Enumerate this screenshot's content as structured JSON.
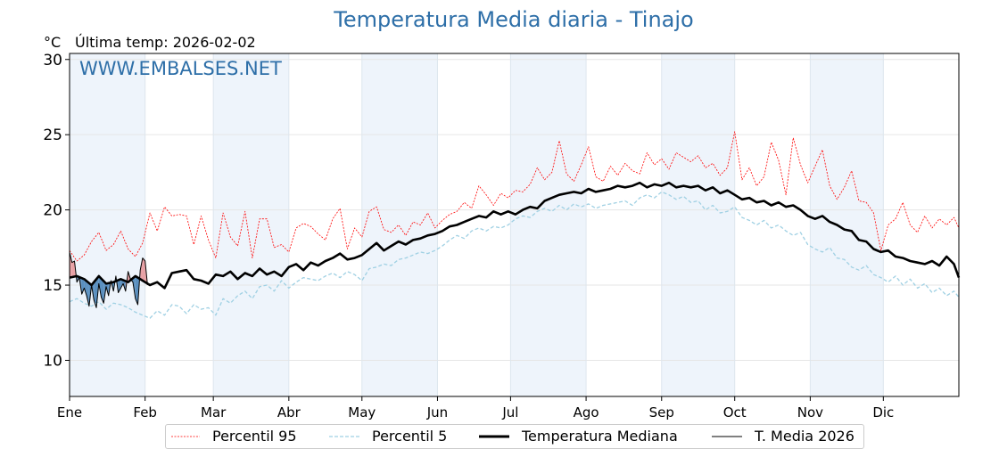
{
  "header": {
    "title": "Temperatura Media diaria - Tinajo",
    "unit": "°C",
    "last_temp_label": "Última temp: 2026-02-02",
    "watermark": "WWW.EMBALSES.NET"
  },
  "colors": {
    "title": "#2e6fa8",
    "p95": "#ff0000",
    "p5": "#9fd0e3",
    "median": "#000000",
    "media2026": "#000000",
    "above_fill": "#e8a0a4",
    "below_fill": "#5a8fbf",
    "band": "#eef4fb"
  },
  "legend": [
    {
      "key": "p95",
      "label": "Percentil 95"
    },
    {
      "key": "p5",
      "label": "Percentil 5"
    },
    {
      "key": "median",
      "label": "Temperatura Mediana"
    },
    {
      "key": "media2026",
      "label": "T. Media 2026"
    }
  ],
  "chart_data": {
    "type": "line",
    "title": "Temperatura Media diaria - Tinajo",
    "xlabel": "",
    "ylabel": "°C",
    "ylim": [
      7.6,
      30.4
    ],
    "xlim": [
      0,
      365
    ],
    "yticks": [
      10,
      15,
      20,
      25,
      30
    ],
    "month_ticks": [
      {
        "label": "Ene",
        "day": 0
      },
      {
        "label": "Feb",
        "day": 31
      },
      {
        "label": "Mar",
        "day": 59
      },
      {
        "label": "Abr",
        "day": 90
      },
      {
        "label": "May",
        "day": 120
      },
      {
        "label": "Jun",
        "day": 151
      },
      {
        "label": "Jul",
        "day": 181
      },
      {
        "label": "Ago",
        "day": 212
      },
      {
        "label": "Sep",
        "day": 243
      },
      {
        "label": "Oct",
        "day": 273
      },
      {
        "label": "Nov",
        "day": 304
      },
      {
        "label": "Dic",
        "day": 334
      }
    ],
    "shaded_months": [
      [
        0,
        31
      ],
      [
        59,
        90
      ],
      [
        120,
        151
      ],
      [
        181,
        212
      ],
      [
        243,
        273
      ],
      [
        304,
        334
      ]
    ],
    "grid": true,
    "legend_position": "bottom",
    "series": [
      {
        "name": "Percentil 95",
        "key": "p95",
        "x": [
          0,
          3,
          6,
          9,
          12,
          15,
          18,
          21,
          24,
          27,
          30,
          33,
          36,
          39,
          42,
          45,
          48,
          51,
          54,
          57,
          60,
          63,
          66,
          69,
          72,
          75,
          78,
          81,
          84,
          87,
          90,
          93,
          96,
          99,
          102,
          105,
          108,
          111,
          114,
          117,
          120,
          123,
          126,
          129,
          132,
          135,
          138,
          141,
          144,
          147,
          150,
          153,
          156,
          159,
          162,
          165,
          168,
          171,
          174,
          177,
          180,
          183,
          186,
          189,
          192,
          195,
          198,
          201,
          204,
          207,
          210,
          213,
          216,
          219,
          222,
          225,
          228,
          231,
          234,
          237,
          240,
          243,
          246,
          249,
          252,
          255,
          258,
          261,
          264,
          267,
          270,
          273,
          276,
          279,
          282,
          285,
          288,
          291,
          294,
          297,
          300,
          303,
          306,
          309,
          312,
          315,
          318,
          321,
          324,
          327,
          330,
          333,
          336,
          339,
          342,
          345,
          348,
          351,
          354,
          357,
          360,
          363,
          365
        ],
        "values": [
          17.3,
          16.6,
          17.0,
          17.9,
          18.5,
          17.3,
          17.7,
          18.6,
          17.4,
          16.9,
          17.8,
          19.8,
          18.6,
          20.2,
          19.6,
          19.7,
          19.6,
          17.7,
          19.6,
          18.0,
          16.8,
          19.8,
          18.2,
          17.6,
          19.9,
          16.8,
          19.4,
          19.4,
          17.5,
          17.7,
          17.2,
          18.8,
          19.1,
          18.9,
          18.4,
          18.0,
          19.4,
          20.1,
          17.4,
          18.8,
          18.2,
          19.9,
          20.2,
          18.7,
          18.5,
          19.0,
          18.3,
          19.2,
          19.0,
          19.8,
          18.8,
          19.3,
          19.7,
          19.9,
          20.5,
          20.1,
          21.6,
          21.0,
          20.3,
          21.1,
          20.8,
          21.3,
          21.2,
          21.7,
          22.8,
          22.0,
          22.5,
          24.6,
          22.4,
          21.9,
          23.0,
          24.2,
          22.2,
          21.9,
          22.9,
          22.3,
          23.1,
          22.6,
          22.4,
          23.8,
          23.0,
          23.4,
          22.7,
          23.8,
          23.5,
          23.2,
          23.6,
          22.8,
          23.1,
          22.3,
          22.8,
          25.2,
          22.0,
          22.8,
          21.6,
          22.2,
          24.5,
          23.3,
          21.0,
          24.8,
          23.0,
          21.8,
          22.9,
          24.0,
          21.6,
          20.7,
          21.5,
          22.6,
          20.6,
          20.5,
          19.8,
          17.3,
          19.0,
          19.4,
          20.5,
          19.0,
          18.5,
          19.6,
          18.8,
          19.4,
          19.0,
          19.5,
          18.8
        ]
      },
      {
        "name": "Percentil 5",
        "key": "p5",
        "x": [
          0,
          3,
          6,
          9,
          12,
          15,
          18,
          21,
          24,
          27,
          30,
          33,
          36,
          39,
          42,
          45,
          48,
          51,
          54,
          57,
          60,
          63,
          66,
          69,
          72,
          75,
          78,
          81,
          84,
          87,
          90,
          93,
          96,
          99,
          102,
          105,
          108,
          111,
          114,
          117,
          120,
          123,
          126,
          129,
          132,
          135,
          138,
          141,
          144,
          147,
          150,
          153,
          156,
          159,
          162,
          165,
          168,
          171,
          174,
          177,
          180,
          183,
          186,
          189,
          192,
          195,
          198,
          201,
          204,
          207,
          210,
          213,
          216,
          219,
          222,
          225,
          228,
          231,
          234,
          237,
          240,
          243,
          246,
          249,
          252,
          255,
          258,
          261,
          264,
          267,
          270,
          273,
          276,
          279,
          282,
          285,
          288,
          291,
          294,
          297,
          300,
          303,
          306,
          309,
          312,
          315,
          318,
          321,
          324,
          327,
          330,
          333,
          336,
          339,
          342,
          345,
          348,
          351,
          354,
          357,
          360,
          363,
          365
        ],
        "values": [
          13.9,
          14.1,
          13.8,
          13.6,
          13.9,
          13.4,
          13.8,
          13.7,
          13.5,
          13.2,
          13.0,
          12.8,
          13.3,
          13.0,
          13.7,
          13.6,
          13.1,
          13.7,
          13.4,
          13.5,
          13.0,
          14.1,
          13.8,
          14.3,
          14.6,
          14.1,
          14.9,
          15.0,
          14.6,
          15.3,
          14.8,
          15.2,
          15.5,
          15.4,
          15.3,
          15.6,
          15.8,
          15.5,
          15.9,
          15.7,
          15.3,
          16.1,
          16.2,
          16.4,
          16.3,
          16.7,
          16.8,
          17.0,
          17.2,
          17.1,
          17.3,
          17.6,
          18.0,
          18.3,
          18.1,
          18.6,
          18.8,
          18.6,
          18.9,
          18.8,
          19.0,
          19.4,
          19.6,
          19.5,
          19.9,
          20.1,
          19.9,
          20.3,
          20.0,
          20.4,
          20.2,
          20.4,
          20.1,
          20.3,
          20.4,
          20.5,
          20.6,
          20.3,
          20.8,
          21.0,
          20.8,
          21.2,
          21.0,
          20.7,
          20.9,
          20.5,
          20.6,
          20.0,
          20.3,
          19.8,
          19.9,
          20.2,
          19.5,
          19.3,
          19.0,
          19.3,
          18.8,
          19.0,
          18.6,
          18.3,
          18.5,
          17.7,
          17.4,
          17.2,
          17.5,
          16.8,
          16.7,
          16.2,
          16.0,
          16.3,
          15.7,
          15.5,
          15.2,
          15.6,
          15.0,
          15.4,
          14.8,
          15.1,
          14.5,
          14.8,
          14.3,
          14.6,
          14.2
        ]
      },
      {
        "name": "Temperatura Mediana",
        "key": "median",
        "x": [
          0,
          3,
          6,
          9,
          12,
          15,
          18,
          21,
          24,
          27,
          30,
          33,
          36,
          39,
          42,
          45,
          48,
          51,
          54,
          57,
          60,
          63,
          66,
          69,
          72,
          75,
          78,
          81,
          84,
          87,
          90,
          93,
          96,
          99,
          102,
          105,
          108,
          111,
          114,
          117,
          120,
          123,
          126,
          129,
          132,
          135,
          138,
          141,
          144,
          147,
          150,
          153,
          156,
          159,
          162,
          165,
          168,
          171,
          174,
          177,
          180,
          183,
          186,
          189,
          192,
          195,
          198,
          201,
          204,
          207,
          210,
          213,
          216,
          219,
          222,
          225,
          228,
          231,
          234,
          237,
          240,
          243,
          246,
          249,
          252,
          255,
          258,
          261,
          264,
          267,
          270,
          273,
          276,
          279,
          282,
          285,
          288,
          291,
          294,
          297,
          300,
          303,
          306,
          309,
          312,
          315,
          318,
          321,
          324,
          327,
          330,
          333,
          336,
          339,
          342,
          345,
          348,
          351,
          354,
          357,
          360,
          363,
          365
        ],
        "values": [
          15.5,
          15.6,
          15.4,
          15.0,
          15.6,
          15.1,
          15.2,
          15.4,
          15.2,
          15.6,
          15.3,
          15.0,
          15.2,
          14.8,
          15.8,
          15.9,
          16.0,
          15.4,
          15.3,
          15.1,
          15.7,
          15.6,
          15.9,
          15.4,
          15.8,
          15.6,
          16.1,
          15.7,
          15.9,
          15.6,
          16.2,
          16.4,
          16.0,
          16.5,
          16.3,
          16.6,
          16.8,
          17.1,
          16.7,
          16.8,
          17.0,
          17.4,
          17.8,
          17.3,
          17.6,
          17.9,
          17.7,
          18.0,
          18.1,
          18.3,
          18.4,
          18.6,
          18.9,
          19.0,
          19.2,
          19.4,
          19.6,
          19.5,
          19.9,
          19.7,
          19.9,
          19.7,
          20.0,
          20.2,
          20.1,
          20.6,
          20.8,
          21.0,
          21.1,
          21.2,
          21.1,
          21.4,
          21.2,
          21.3,
          21.4,
          21.6,
          21.5,
          21.6,
          21.8,
          21.5,
          21.7,
          21.6,
          21.8,
          21.5,
          21.6,
          21.5,
          21.6,
          21.3,
          21.5,
          21.1,
          21.3,
          21.0,
          20.7,
          20.8,
          20.5,
          20.6,
          20.3,
          20.5,
          20.2,
          20.3,
          20.0,
          19.6,
          19.4,
          19.6,
          19.2,
          19.0,
          18.7,
          18.6,
          18.0,
          17.9,
          17.4,
          17.2,
          17.3,
          16.9,
          16.8,
          16.6,
          16.5,
          16.4,
          16.6,
          16.3,
          16.9,
          16.4,
          15.5
        ]
      },
      {
        "name": "T. Media 2026",
        "key": "media2026",
        "x": [
          0,
          1,
          2,
          3,
          4,
          5,
          6,
          7,
          8,
          9,
          10,
          11,
          12,
          13,
          14,
          15,
          16,
          17,
          18,
          19,
          20,
          21,
          22,
          23,
          24,
          25,
          26,
          27,
          28,
          29,
          30,
          31,
          32
        ],
        "values": [
          17.2,
          16.5,
          16.6,
          15.2,
          15.5,
          14.4,
          14.8,
          14.3,
          13.6,
          15.0,
          14.0,
          13.5,
          15.1,
          14.2,
          13.8,
          14.9,
          14.3,
          15.3,
          14.6,
          15.6,
          14.5,
          14.8,
          15.1,
          14.6,
          15.9,
          15.4,
          15.2,
          14.1,
          13.7,
          16.0,
          16.8,
          16.6,
          15.0
        ]
      }
    ]
  }
}
